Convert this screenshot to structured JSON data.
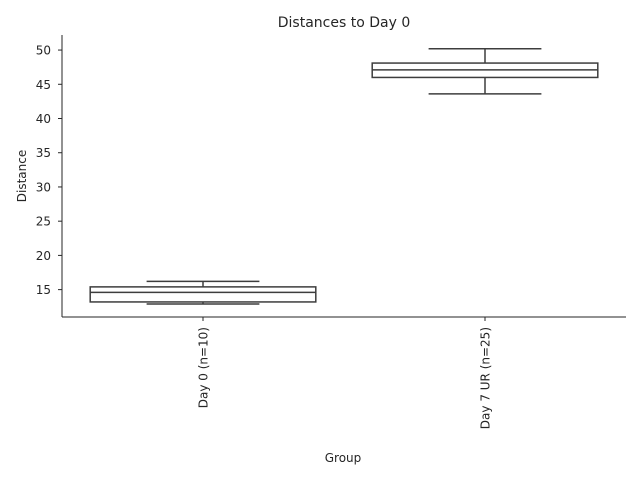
{
  "chart_data": {
    "type": "box",
    "title": "Distances to Day 0",
    "xlabel": "Group",
    "ylabel": "Distance",
    "ylim": [
      11,
      52.2
    ],
    "yticks": [
      15,
      20,
      25,
      30,
      35,
      40,
      45,
      50
    ],
    "grid": false,
    "categories": [
      "Day 0 (n=10)",
      "Day 7 UR (n=25)"
    ],
    "boxes": [
      {
        "category": "Day 0 (n=10)",
        "whisker_low": 12.9,
        "q1": 13.2,
        "median": 14.6,
        "q3": 15.4,
        "whisker_high": 16.2
      },
      {
        "category": "Day 7 UR (n=25)",
        "whisker_low": 43.6,
        "q1": 46.0,
        "median": 47.1,
        "q3": 48.1,
        "whisker_high": 50.2
      }
    ]
  }
}
